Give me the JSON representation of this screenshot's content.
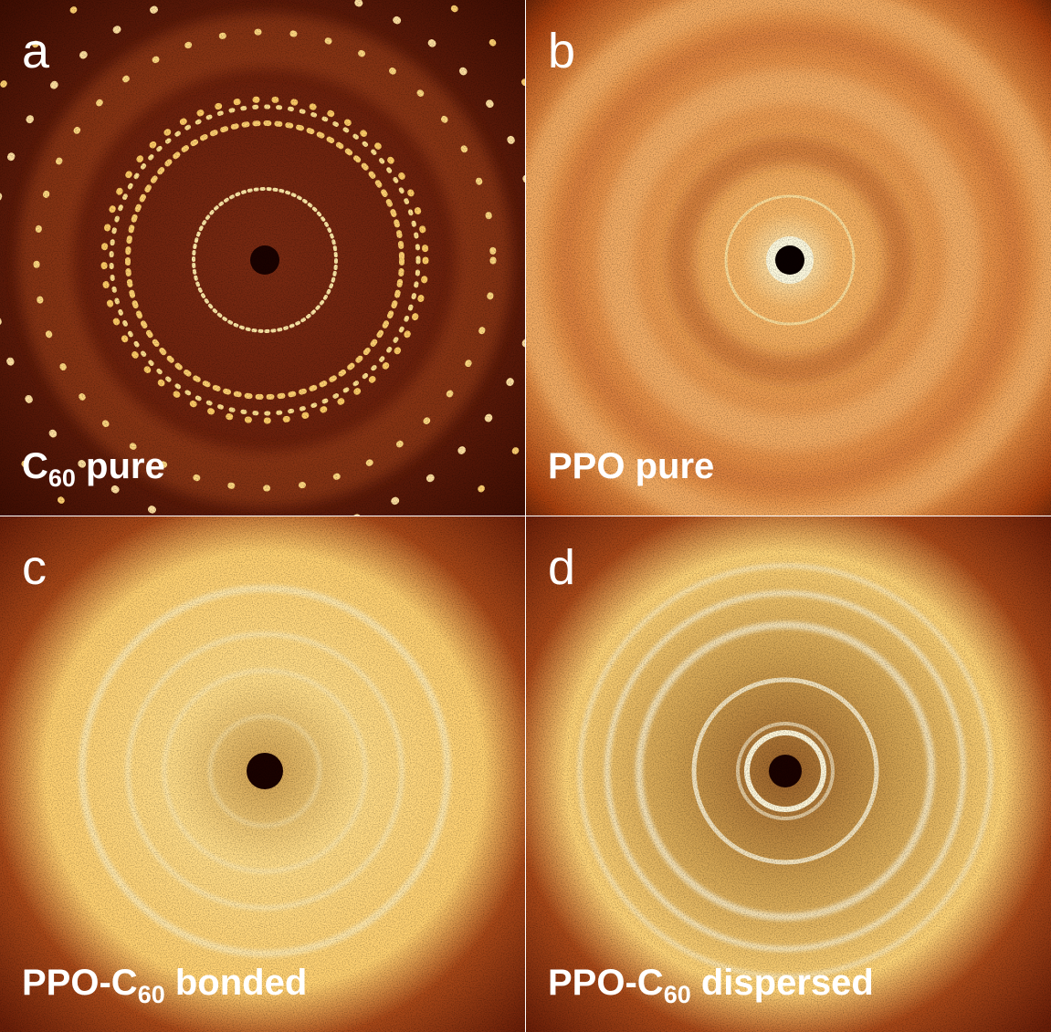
{
  "panels": [
    {
      "letter": "a",
      "label": {
        "before": "C",
        "subscript": "60",
        "after": " pure"
      }
    },
    {
      "letter": "b",
      "label": {
        "before": "PPO pure"
      }
    },
    {
      "letter": "c",
      "label": {
        "before": "PPO-C",
        "subscript": "60",
        "after": " bonded"
      }
    },
    {
      "letter": "d",
      "label": {
        "before": "PPO-C",
        "subscript": "60",
        "after": " dispersed"
      }
    }
  ]
}
